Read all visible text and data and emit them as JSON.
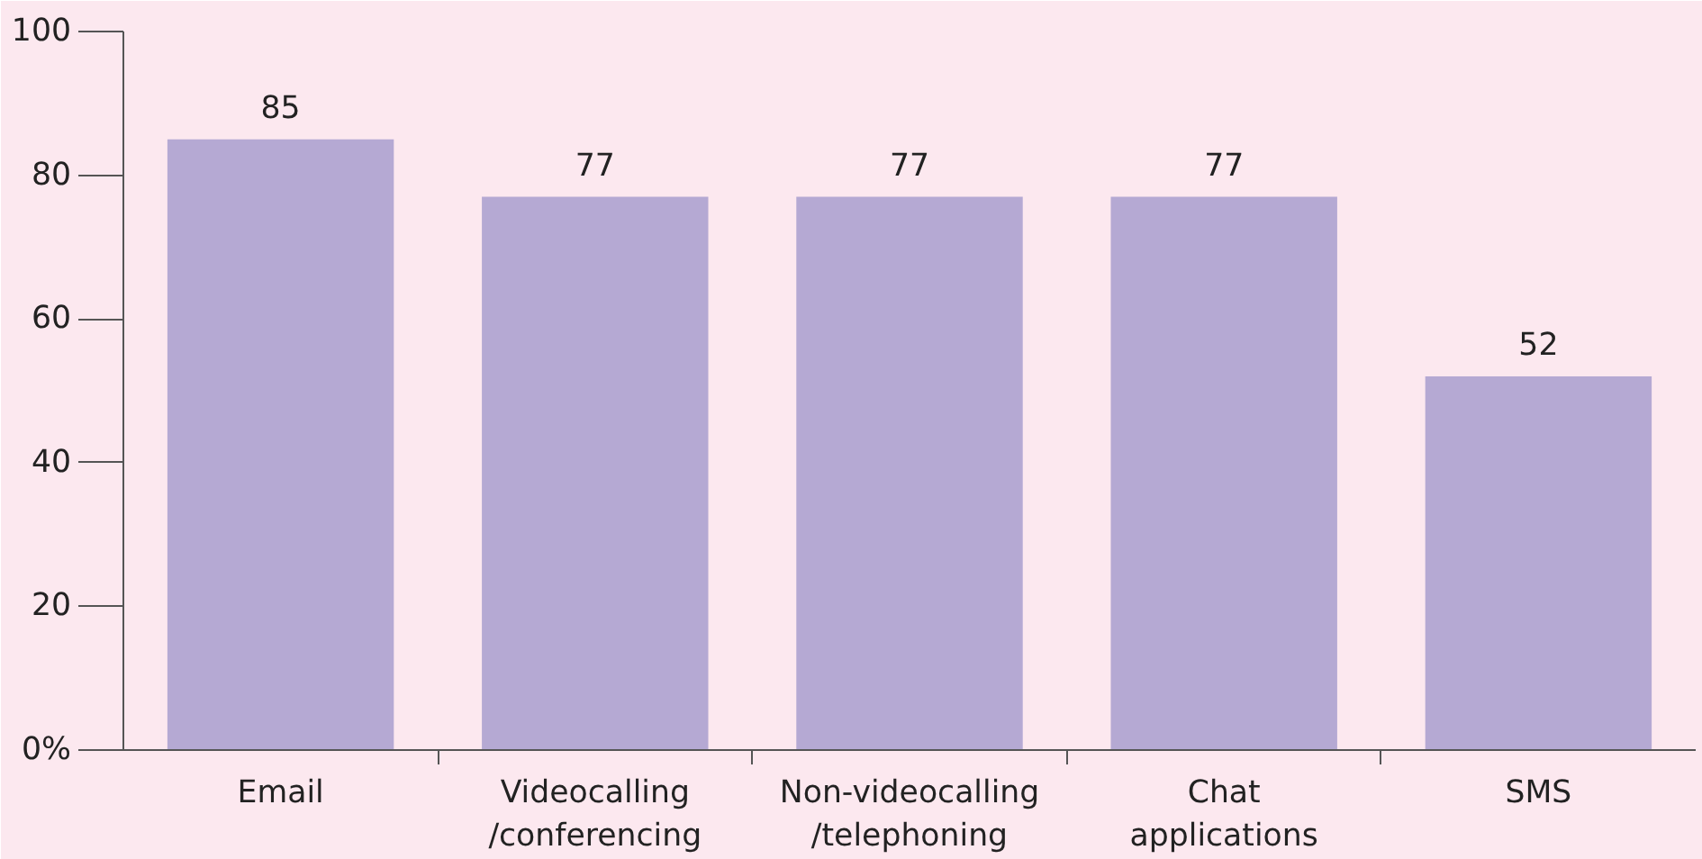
{
  "chart_data": {
    "type": "bar",
    "categories": [
      "Email",
      "Videocalling\n/conferencing",
      "Non-videocalling\n/telephoning",
      "Chat\napplications",
      "SMS"
    ],
    "values": [
      85,
      77,
      77,
      77,
      52
    ],
    "color": "#b5a9d3",
    "ylim": [
      0,
      100
    ],
    "yticks": [
      {
        "value": 0,
        "label": "0%"
      },
      20,
      40,
      60,
      80,
      100
    ],
    "data_labels": true,
    "grid": false
  }
}
